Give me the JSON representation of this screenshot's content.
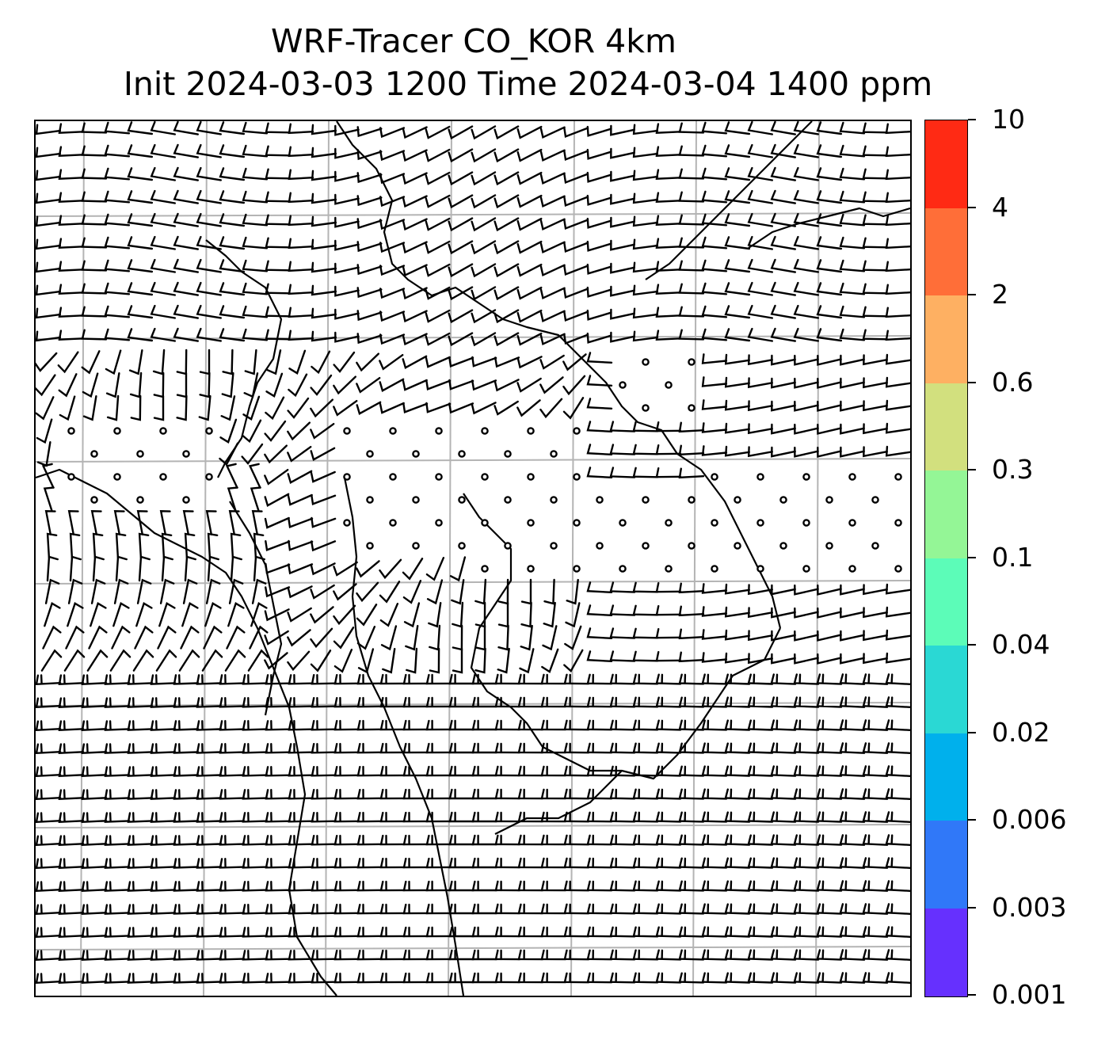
{
  "header": {
    "title_line1": "WRF-Tracer CO_KOR 4km",
    "title_line2": "Init 2024-03-03 1200 Time 2024-03-04 1400 ppm"
  },
  "colorbar": {
    "levels": [
      "10",
      "4",
      "2",
      "0.6",
      "0.3",
      "0.1",
      "0.04",
      "0.02",
      "0.006",
      "0.003",
      "0.001"
    ],
    "colors": [
      "#ff2a14",
      "#ff6e38",
      "#feb062",
      "#d2e07e",
      "#94f696",
      "#5cfcb8",
      "#2ad8d4",
      "#00b0ec",
      "#3078f8",
      "#6630fe"
    ],
    "colormap": "rainbow"
  },
  "map": {
    "gridlines": true,
    "gridline_color": "#b4b4b4",
    "symbols": [
      "wind-barbs",
      "calm-circles",
      "coastlines"
    ],
    "coastline_color": "#000000"
  }
}
